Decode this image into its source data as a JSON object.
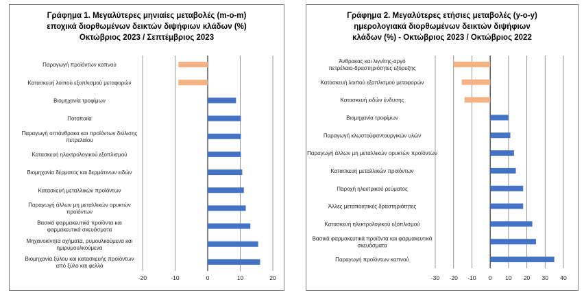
{
  "chart_data": [
    {
      "type": "bar",
      "orientation": "horizontal",
      "title": [
        "Γράφημα 1. Μεγαλύτερες μηνιαίες μεταβολές (m-o-m)",
        "εποχικά διορθωμένων δεικτών διψήφιων κλάδων (%)",
        "Οκτώβριος 2023 / Σεπτέμβριος 2023"
      ],
      "categories": [
        "Παραγωγή προϊόντων καπνού",
        "Κατασκευή λοιπού εξοπλισμού μεταφορών",
        "Βιομηχανία τροφίμων",
        "Ποτοποιία",
        "Παραγωγή οπτάνθρακα και προϊόντων διύλισης πετρελαίου",
        "Κατασκευή ηλεκτρολογικού εξοπλισμού",
        "Βιομηχανία δέρματος και δερμάτινων ειδών",
        "Κατασκευή μεταλλικών προϊόντων",
        "Παραγωγή άλλων μη μεταλλικών ορυκτών προϊόντων",
        "Βασικά φαρμακευτικά προϊόντα και φαρμακευτικά σκευάσματα",
        "Μηχανοκίνητα οχήματα, ρυμουλκούμενα και ημιρυμουλκούμενα",
        "Βιομηχανία ξύλου και κατασκευής προϊόντων από ξύλο και φελλό"
      ],
      "values": [
        -9,
        -9,
        8.7,
        10.2,
        10.2,
        10.2,
        10.6,
        11.1,
        11.7,
        13.1,
        15.5,
        16.1
      ],
      "xlim": [
        -20,
        20
      ],
      "xticks": [
        -20,
        -10,
        0,
        10,
        20
      ],
      "grid": true,
      "colors": {
        "positive": "#4472c4",
        "negative": "#f4b183"
      }
    },
    {
      "type": "bar",
      "orientation": "horizontal",
      "title": [
        "Γράφημα 2. Μεγαλύτερες ετήσιες μεταβολές (y-o-y)",
        "ημερολογιακά διορθωμένων δεικτών διψήφιων",
        "κλάδων (%)  - Οκτώβριος 2023 / Οκτώβριος  2022"
      ],
      "categories": [
        "Άνθρακας και λιγνίτης-αργό πετρέλαιο-δραστηριότητες εξόρυξης",
        "Κατασκευή λοιπού εξοπλισμού μεταφορών",
        "Κατασκευή ειδών ένδυσης",
        "Βιομηχανία τροφίμων",
        "Παραγωγή κλωστοϋφαντουργικών υλών",
        "Παραγωγή άλλων μη μεταλλικών ορυκτών προϊόντων",
        "Κατασκευή μεταλλικών προϊόντων",
        "Παροχή ηλεκτρικού ρεύματος",
        "Άλλες μεταποιητικές δραστηριότητες",
        "Κατασκευή ηλεκτρολογικού εξοπλισμού",
        "Βασικά φαρμακευτικά προϊόντα και φαρμακευτικά σκευάσματα",
        "Παραγωγή προϊόντων καπνού"
      ],
      "values": [
        -20,
        -15.5,
        -14,
        10,
        11,
        13,
        14,
        18,
        18,
        23,
        25,
        35
      ],
      "xlim": [
        -30,
        40
      ],
      "xticks": [
        -30,
        -20,
        -10,
        0,
        10,
        20,
        30,
        40
      ],
      "grid": true,
      "colors": {
        "positive": "#4472c4",
        "negative": "#f4b183"
      }
    }
  ]
}
